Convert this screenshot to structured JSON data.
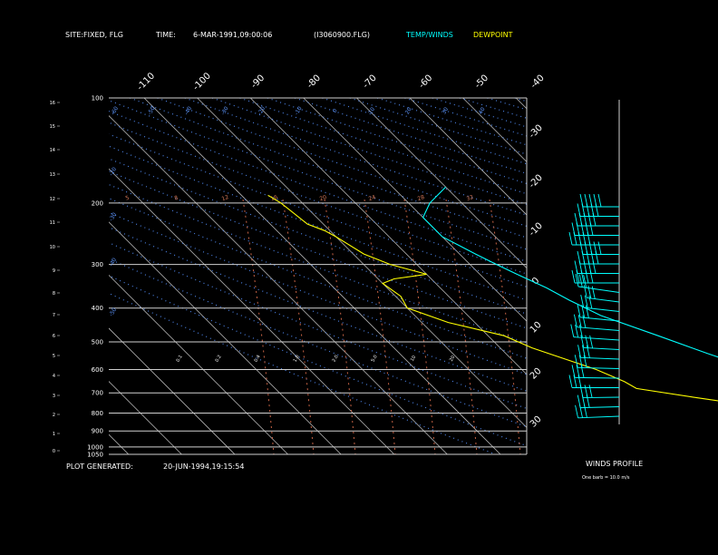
{
  "header": {
    "site_label": "SITE:",
    "site_value": "FIXED, FLG",
    "time_label": "TIME:",
    "time_value": "6-MAR-1991,09:00:06",
    "file": "(I3060900.FLG)",
    "legend_temp": "TEMP/WINDS",
    "legend_dew": "DEWPOINT"
  },
  "footer": {
    "generated_label": "PLOT GENERATED:",
    "generated_value": "20-JUN-1994,19:15:54"
  },
  "winds": {
    "title": "WINDS PROFILE",
    "note": "One barb = 10.0 m/s"
  },
  "colors": {
    "temp": "#00ffff",
    "dew": "#ffff00",
    "isotherm": "#b4b4b4",
    "isobar": "#cfcfcf",
    "dry_adiabat": "#4a7fe0",
    "mixing_ratio": "#c86446"
  },
  "chart_data": {
    "type": "line",
    "title": "",
    "xlabel": "",
    "ylabel": "",
    "pressure_levels": [
      "100",
      "200",
      "300",
      "400",
      "500",
      "600",
      "700",
      "800",
      "900",
      "1000",
      "1050"
    ],
    "height_km_ticks": [
      "0",
      "1",
      "2",
      "3",
      "4",
      "5",
      "6",
      "7",
      "8",
      "9",
      "10",
      "11",
      "12",
      "13",
      "14",
      "15",
      "16"
    ],
    "top_temp_labels": [
      "-110",
      "-100",
      "-90",
      "-80",
      "-70",
      "-60",
      "-50",
      "-40"
    ],
    "right_temp_labels": [
      "-30",
      "-20",
      "-10",
      "0",
      "10",
      "20",
      "30"
    ],
    "adiabat_labels_top": [
      "-60",
      "-50",
      "-40",
      "-30",
      "-20",
      "-10",
      "0",
      "10",
      "20",
      "30",
      "40"
    ],
    "adiabat_labels_left": [
      "-20",
      "-30",
      "-40",
      "-50"
    ],
    "mixing_ratio_labels_upper": [
      "5",
      "8",
      "12",
      "16",
      "20",
      "24",
      "28",
      "32"
    ],
    "mixing_ratio_labels_lower": [
      "0.1",
      "0.2",
      "0.4",
      "1.0",
      "2.0",
      "5.0",
      "10",
      "20"
    ],
    "series": [
      {
        "name": "TEMP/WINDS",
        "points": [
          [
            -70,
            180
          ],
          [
            -76,
            200
          ],
          [
            -80,
            220
          ],
          [
            -80,
            250
          ],
          [
            -77,
            280
          ],
          [
            -75,
            300
          ],
          [
            -73,
            320
          ],
          [
            -70,
            350
          ],
          [
            -68,
            380
          ],
          [
            -65,
            420
          ],
          [
            -58,
            480
          ],
          [
            -52,
            540
          ],
          [
            -46,
            600
          ],
          [
            -40,
            650
          ],
          [
            -32,
            700
          ],
          [
            -26,
            740
          ],
          [
            -20,
            780
          ],
          [
            -16,
            810
          ],
          [
            -12,
            840
          ],
          [
            -14,
            860
          ],
          [
            -16,
            870
          ]
        ]
      },
      {
        "name": "DEWPOINT",
        "points": [
          [
            -105,
            190
          ],
          [
            -104,
            200
          ],
          [
            -103,
            230
          ],
          [
            -101,
            240
          ],
          [
            -100,
            250
          ],
          [
            -98,
            280
          ],
          [
            -95,
            300
          ],
          [
            -90,
            320
          ],
          [
            -97,
            330
          ],
          [
            -100,
            340
          ],
          [
            -99,
            370
          ],
          [
            -100,
            400
          ],
          [
            -95,
            440
          ],
          [
            -87,
            480
          ],
          [
            -84,
            520
          ],
          [
            -76,
            600
          ],
          [
            -73,
            650
          ],
          [
            -72,
            680
          ],
          [
            -63,
            720
          ],
          [
            -54,
            760
          ],
          [
            -44,
            800
          ],
          [
            -32,
            820
          ],
          [
            -26,
            840
          ],
          [
            -14,
            850
          ],
          [
            -20,
            860
          ],
          [
            -18,
            870
          ]
        ]
      }
    ],
    "wind_profile_barb_count": 23
  }
}
